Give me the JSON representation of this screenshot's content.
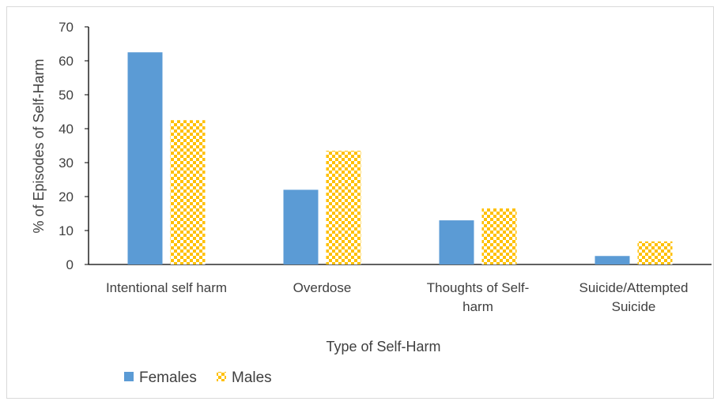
{
  "chart_data": {
    "type": "bar",
    "title": "",
    "xlabel": "Type of Self-Harm",
    "ylabel": "% of Episodes of Self-Harm",
    "ylim": [
      0,
      70
    ],
    "yticks": [
      0,
      10,
      20,
      30,
      40,
      50,
      60,
      70
    ],
    "grid": false,
    "legend_position": "bottom-left",
    "categories": [
      [
        "Intentional self harm"
      ],
      [
        "Overdose"
      ],
      [
        "Thoughts of Self-",
        "harm"
      ],
      [
        "Suicide/Attempted",
        "Suicide"
      ]
    ],
    "series": [
      {
        "name": "Females",
        "values": [
          62.5,
          22,
          13,
          2.5
        ],
        "color": "#5b9bd5",
        "pattern": "solid"
      },
      {
        "name": "Males",
        "values": [
          42.5,
          33.5,
          16.5,
          6.8
        ],
        "color": "#ffc000",
        "pattern": "checker"
      }
    ]
  }
}
